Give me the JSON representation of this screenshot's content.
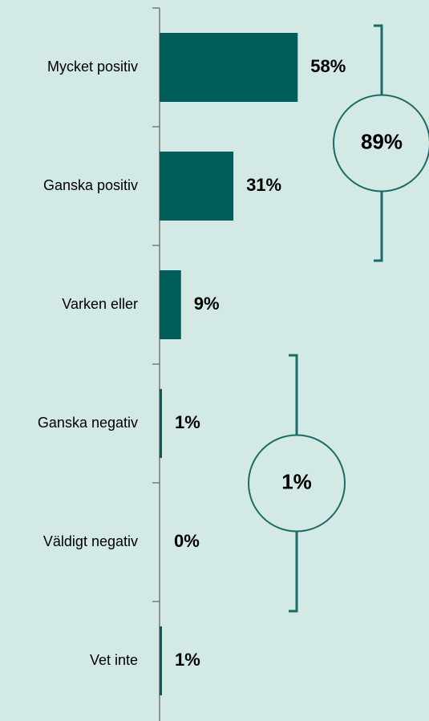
{
  "chart_data": {
    "type": "bar",
    "orientation": "horizontal",
    "categories": [
      "Mycket positiv",
      "Ganska positiv",
      "Varken eller",
      "Ganska negativ",
      "Väldigt negativ",
      "Vet inte"
    ],
    "values": [
      58,
      31,
      9,
      1,
      0,
      1
    ],
    "value_labels": [
      "58%",
      "31%",
      "9%",
      "1%",
      "0%",
      "1%"
    ],
    "color": "#005f5a",
    "xlim": [
      0,
      100
    ],
    "annotations": [
      "89%",
      "1%"
    ]
  }
}
